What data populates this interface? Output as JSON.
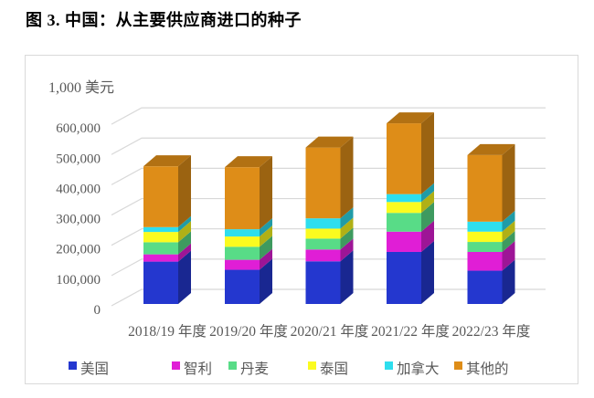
{
  "title": "图 3. 中国：从主要供应商进口的种子",
  "chart_data": {
    "type": "bar",
    "stacked": true,
    "style_3d": true,
    "title": "图 3. 中国：从主要供应商进口的种子",
    "unit_label": "1,000 美元",
    "xlabel": "",
    "ylabel": "1,000 美元",
    "ylim": [
      0,
      600000
    ],
    "y_tick_step": 100000,
    "y_tick_labels": [
      "0",
      "100,000",
      "200,000",
      "300,000",
      "400,000",
      "500,000",
      "600,000"
    ],
    "grid": true,
    "legend_position": "bottom",
    "categories": [
      "2018/19 年度",
      "2019/20 年度",
      "2020/21 年度",
      "2021/22 年度",
      "2022/23 年度"
    ],
    "series": [
      {
        "name": "美国",
        "color": "#2437CF",
        "values": [
          140000,
          113000,
          141000,
          172000,
          110000
        ]
      },
      {
        "name": "智利",
        "color": "#E01ED6",
        "values": [
          24000,
          33000,
          39000,
          67000,
          62000
        ]
      },
      {
        "name": "丹麦",
        "color": "#58DC87",
        "values": [
          40000,
          43000,
          36000,
          62000,
          33000
        ]
      },
      {
        "name": "泰国",
        "color": "#FBFB1F",
        "values": [
          34000,
          34000,
          33000,
          36000,
          34000
        ]
      },
      {
        "name": "加拿大",
        "color": "#2EDEEE",
        "values": [
          16000,
          24000,
          34000,
          26000,
          33000
        ]
      },
      {
        "name": "其他的",
        "color": "#DE8D18",
        "values": [
          201000,
          205000,
          234000,
          234000,
          220000
        ]
      }
    ],
    "totals": [
      455000,
      452000,
      517000,
      597000,
      492000
    ],
    "colors": {
      "axis_text": "#595959",
      "gridline": "#d8d8d8",
      "card_border": "#d9d9d9"
    }
  }
}
